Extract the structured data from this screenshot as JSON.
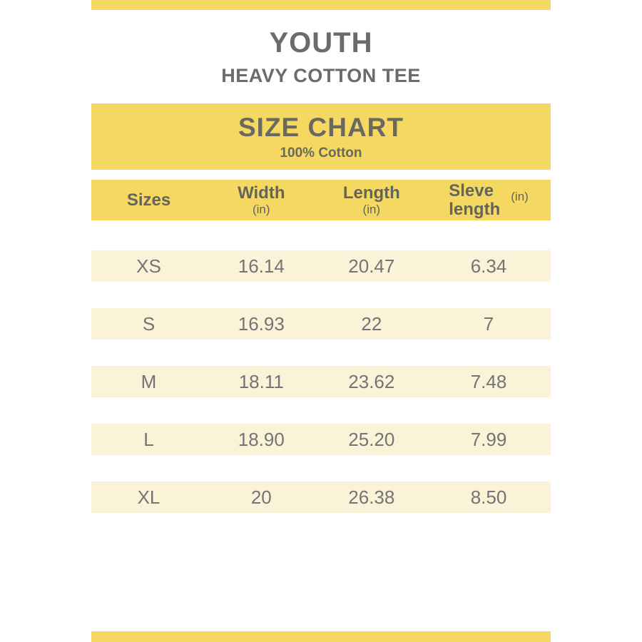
{
  "page": {
    "background": "#ffffff",
    "accent_yellow": "#F4D861",
    "row_cream": "#FAF3D8",
    "text_gray": "#6b6b6b"
  },
  "header": {
    "title": "YOUTH",
    "subtitle": "HEAVY COTTON TEE"
  },
  "banner": {
    "title": "SIZE CHART",
    "subtitle": "100% Cotton"
  },
  "table": {
    "columns": [
      {
        "label": "Sizes",
        "unit": ""
      },
      {
        "label": "Width",
        "unit": "(in)"
      },
      {
        "label": "Length",
        "unit": "(in)"
      },
      {
        "label": "Sleve length",
        "unit": "(in)"
      }
    ],
    "rows": [
      {
        "size": "XS",
        "width": "16.14",
        "length": "20.47",
        "sleeve": "6.34"
      },
      {
        "size": "S",
        "width": "16.93",
        "length": "22",
        "sleeve": "7"
      },
      {
        "size": "M",
        "width": "18.11",
        "length": "23.62",
        "sleeve": "7.48"
      },
      {
        "size": "L",
        "width": "18.90",
        "length": "25.20",
        "sleeve": "7.99"
      },
      {
        "size": "XL",
        "width": "20",
        "length": "26.38",
        "sleeve": "8.50"
      }
    ]
  },
  "chart_data": {
    "type": "table",
    "title": "SIZE CHART",
    "subtitle": "100% Cotton",
    "garment": "YOUTH HEAVY COTTON TEE",
    "columns": [
      "Sizes",
      "Width (in)",
      "Length (in)",
      "Sleve length (in)"
    ],
    "rows": [
      [
        "XS",
        "16.14",
        "20.47",
        "6.34"
      ],
      [
        "S",
        "16.93",
        "22",
        "7"
      ],
      [
        "M",
        "18.11",
        "23.62",
        "7.48"
      ],
      [
        "L",
        "18.90",
        "25.20",
        "7.99"
      ],
      [
        "XL",
        "20",
        "26.38",
        "8.50"
      ]
    ]
  }
}
